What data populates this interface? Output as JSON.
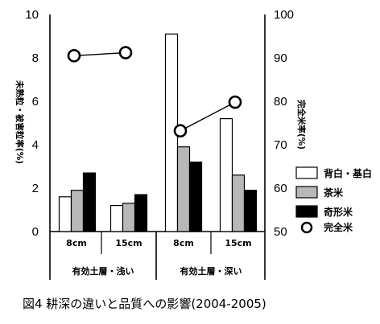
{
  "chart_data": {
    "type": "bar",
    "title": "",
    "caption": "図4 耕深の違いと品質への影響(2004-2005)",
    "ylabel_left": "未熟粒・被害粒率(%)",
    "ylabel_right": "完全米率(%)",
    "ylim_left": [
      0,
      10
    ],
    "ylim_right": [
      50,
      100
    ],
    "yticks_left": [
      "0",
      "2",
      "4",
      "6",
      "8",
      "10"
    ],
    "yticks_right": [
      "50",
      "60",
      "70",
      "80",
      "90",
      "100"
    ],
    "categories": [
      "8cm",
      "15cm",
      "8cm",
      "15cm"
    ],
    "groups": [
      {
        "label": "有効土層・浅い",
        "categories": [
          0,
          1
        ]
      },
      {
        "label": "有効土層・深い",
        "categories": [
          2,
          3
        ]
      }
    ],
    "series": [
      {
        "name": "背白・基白",
        "axis": "left",
        "type": "bar",
        "color": "#ffffff",
        "values": [
          1.6,
          1.2,
          9.1,
          5.2
        ]
      },
      {
        "name": "茶米",
        "axis": "left",
        "type": "bar",
        "color": "#b8b8b8",
        "values": [
          1.9,
          1.3,
          3.9,
          2.6
        ]
      },
      {
        "name": "奇形米",
        "axis": "left",
        "type": "bar",
        "color": "#000000",
        "values": [
          2.7,
          1.7,
          3.2,
          1.9
        ]
      },
      {
        "name": "完全米",
        "axis": "right",
        "type": "line",
        "marker": "open-circle",
        "values": [
          90.5,
          91.2,
          73.2,
          79.8
        ]
      }
    ],
    "legend_position": "right",
    "grid": false
  }
}
